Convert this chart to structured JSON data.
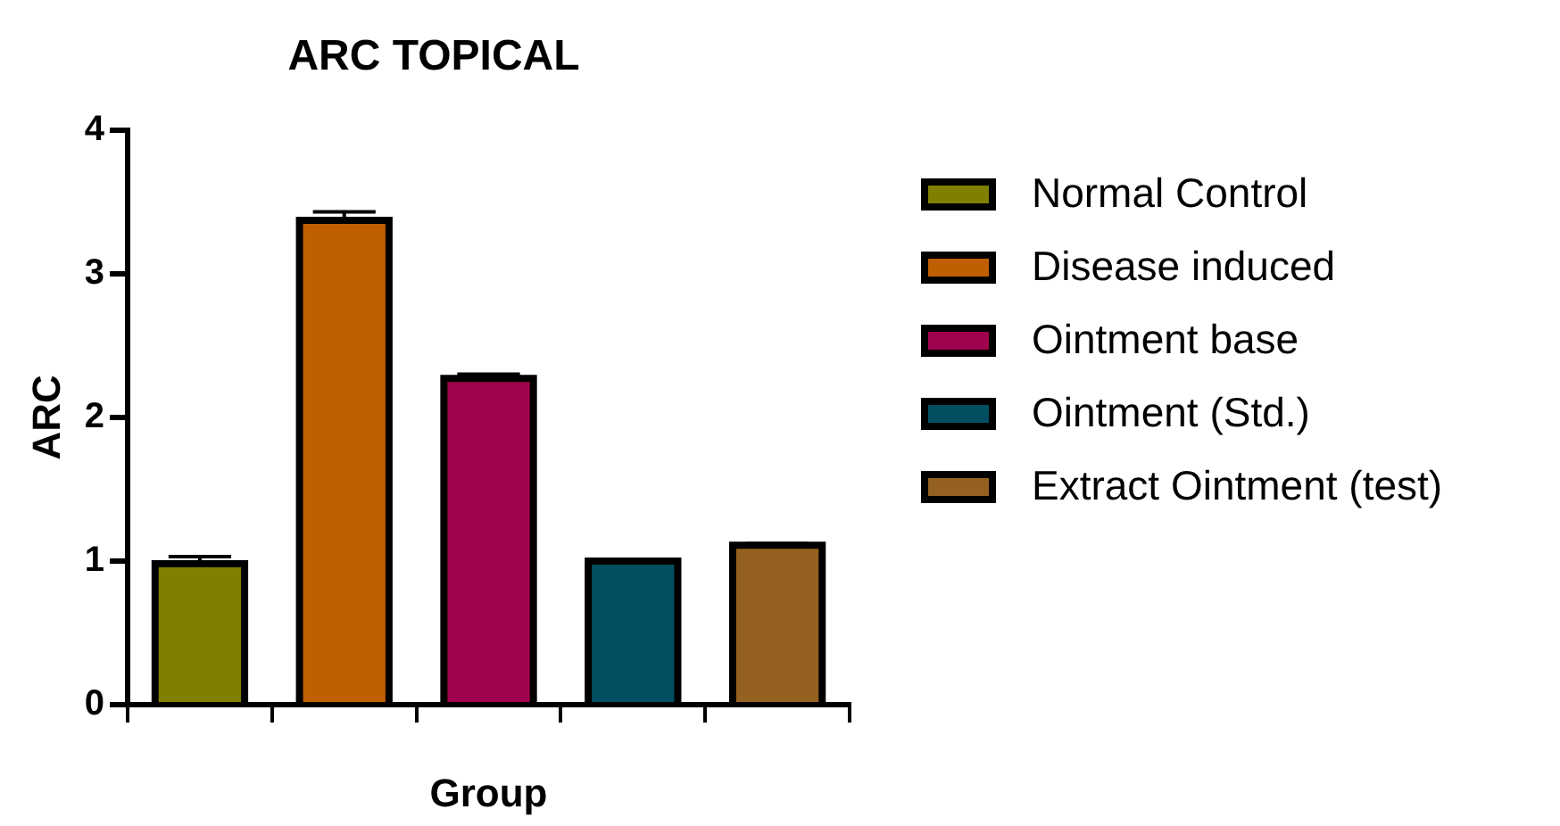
{
  "chart_data": {
    "type": "bar",
    "title": "ARC TOPICAL",
    "xlabel": "Group",
    "ylabel": "ARC",
    "categories": [
      null,
      null,
      null,
      null,
      null
    ],
    "series": [
      {
        "name": "Normal Control",
        "color": "#808000",
        "values": [
          0.98,
          null,
          null,
          null,
          null
        ],
        "errors": [
          0.05,
          null,
          null,
          null,
          null
        ]
      },
      {
        "name": "Disease induced",
        "color": "#c05f00",
        "values": [
          null,
          3.37,
          null,
          null,
          null
        ],
        "errors": [
          null,
          0.06,
          null,
          null,
          null
        ]
      },
      {
        "name": "Ointment base",
        "color": "#a0034d",
        "values": [
          null,
          null,
          2.27,
          null,
          null
        ],
        "errors": [
          null,
          null,
          0.03,
          null,
          null
        ]
      },
      {
        "name": "Ointment (Std.)",
        "color": "#034f62",
        "values": [
          null,
          null,
          null,
          1.0,
          null
        ],
        "errors": [
          null,
          null,
          null,
          0.01,
          null
        ]
      },
      {
        "name": "Extract Ointment (test)",
        "color": "#946120",
        "values": [
          null,
          null,
          null,
          null,
          1.11
        ],
        "errors": [
          null,
          null,
          null,
          null,
          0.01
        ]
      }
    ],
    "ylim": [
      0,
      4
    ],
    "yticks": [
      0,
      1,
      2,
      3,
      4
    ],
    "grid": false,
    "legend": "right"
  }
}
